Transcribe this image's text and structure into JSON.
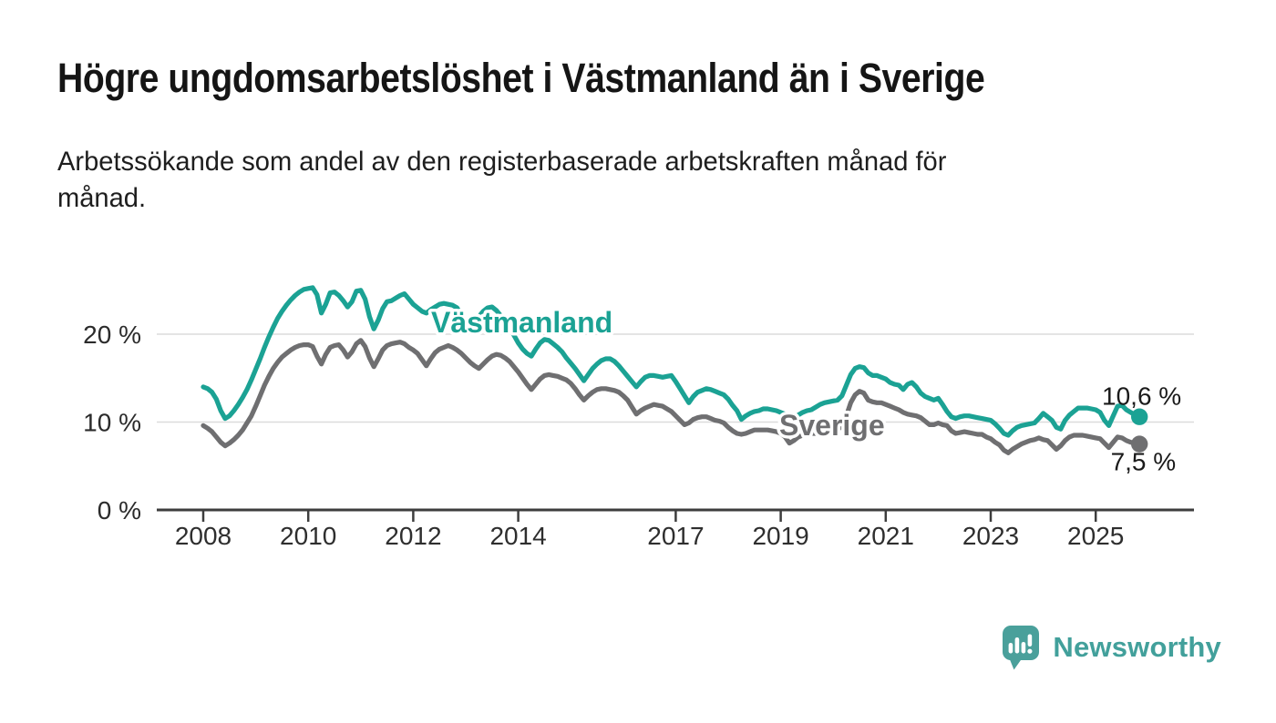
{
  "header": {
    "title": "Högre ungdomsarbetslöshet i Västmanland än i Sverige",
    "subtitle_line1": "Arbetssökande som andel av den registerbaserade arbetskraften månad för",
    "subtitle_line2": "månad."
  },
  "footer": {
    "brand": "Newsworthy",
    "logo_icon": "bar-chart-speech-bubble-icon"
  },
  "colors": {
    "vastmanland_teal": "#1ba294",
    "sverige_gray": "#6f6f71",
    "axis": "#3d3d3d",
    "gridline": "#dcdcdc",
    "text_dark": "#1a1a1a",
    "logo_teal": "#42a09b",
    "background": "#ffffff"
  },
  "chart_data": {
    "type": "line",
    "title": "Högre ungdomsarbetslöshet i Västmanland än i Sverige",
    "subtitle": "Arbetssökande som andel av den registerbaserade arbetskraften månad för månad.",
    "xlabel": "",
    "ylabel": "",
    "frequency": "monthly",
    "x_start_month": "2008-01",
    "x_end_month": "2025-11",
    "x_ticks": [
      2008,
      2010,
      2012,
      2014,
      2017,
      2019,
      2021,
      2023,
      2025
    ],
    "y_ticks": [
      {
        "value": 0,
        "label": "0 %"
      },
      {
        "value": 10,
        "label": "10 %"
      },
      {
        "value": 20,
        "label": "20 %"
      }
    ],
    "ylim": [
      0,
      26.5
    ],
    "grid": "horizontal",
    "legend_position": "inline-labels",
    "series": [
      {
        "name": "Sverige",
        "label": "Sverige",
        "color": "#6f6f71",
        "end_label": "7,5 %",
        "end_value": 7.5,
        "values": [
          9.6,
          9.3,
          8.9,
          8.3,
          7.7,
          7.3,
          7.6,
          8.0,
          8.5,
          9.1,
          9.9,
          10.7,
          11.8,
          13.0,
          14.2,
          15.2,
          16.1,
          16.8,
          17.4,
          17.8,
          18.2,
          18.5,
          18.7,
          18.8,
          18.8,
          18.6,
          17.5,
          16.6,
          17.7,
          18.5,
          18.7,
          18.8,
          18.2,
          17.4,
          18.0,
          18.9,
          19.3,
          18.6,
          17.3,
          16.3,
          17.2,
          18.2,
          18.7,
          18.9,
          19.0,
          19.1,
          18.9,
          18.5,
          18.2,
          17.8,
          17.1,
          16.4,
          17.2,
          17.9,
          18.3,
          18.5,
          18.7,
          18.5,
          18.2,
          17.8,
          17.3,
          16.8,
          16.4,
          16.1,
          16.6,
          17.1,
          17.5,
          17.7,
          17.6,
          17.3,
          16.9,
          16.3,
          15.7,
          15.0,
          14.3,
          13.7,
          14.3,
          14.9,
          15.3,
          15.4,
          15.3,
          15.2,
          15.0,
          14.8,
          14.4,
          13.8,
          13.1,
          12.5,
          13.0,
          13.4,
          13.7,
          13.8,
          13.8,
          13.7,
          13.6,
          13.4,
          13.0,
          12.5,
          11.7,
          10.9,
          11.3,
          11.6,
          11.8,
          12.0,
          11.9,
          11.8,
          11.5,
          11.2,
          10.7,
          10.2,
          9.7,
          9.9,
          10.3,
          10.5,
          10.6,
          10.6,
          10.4,
          10.2,
          10.1,
          9.9,
          9.4,
          9.0,
          8.7,
          8.6,
          8.7,
          8.9,
          9.1,
          9.1,
          9.1,
          9.1,
          9.0,
          8.9,
          8.7,
          8.3,
          7.6,
          7.9,
          8.3,
          8.5,
          8.7,
          8.7,
          8.7,
          8.8,
          8.8,
          8.9,
          9.0,
          9.1,
          9.6,
          10.7,
          12.2,
          13.1,
          13.5,
          13.3,
          12.5,
          12.3,
          12.2,
          12.2,
          12.0,
          11.8,
          11.6,
          11.4,
          11.1,
          10.9,
          10.8,
          10.7,
          10.5,
          10.1,
          9.7,
          9.7,
          9.9,
          9.7,
          9.6,
          9.0,
          8.7,
          8.8,
          8.9,
          8.8,
          8.7,
          8.6,
          8.6,
          8.3,
          8.1,
          7.7,
          7.4,
          6.8,
          6.5,
          6.9,
          7.2,
          7.5,
          7.7,
          7.9,
          8.0,
          8.2,
          8.0,
          7.9,
          7.4,
          6.9,
          7.3,
          7.9,
          8.3,
          8.5,
          8.5,
          8.5,
          8.4,
          8.3,
          8.2,
          8.1,
          7.6,
          7.1,
          7.7,
          8.3,
          8.2,
          7.9,
          7.7,
          7.6,
          7.5
        ]
      },
      {
        "name": "Västmanland",
        "label": "Västmanland",
        "color": "#1ba294",
        "end_label": "10,6 %",
        "end_value": 10.6,
        "values": [
          14.0,
          13.8,
          13.4,
          12.6,
          11.3,
          10.4,
          10.7,
          11.3,
          12.0,
          12.8,
          13.7,
          14.8,
          16.0,
          17.2,
          18.5,
          19.7,
          20.8,
          21.8,
          22.6,
          23.3,
          23.9,
          24.4,
          24.8,
          25.1,
          25.2,
          25.3,
          24.5,
          22.4,
          23.4,
          24.7,
          24.8,
          24.4,
          23.8,
          23.1,
          23.7,
          24.9,
          25.0,
          24.0,
          22.0,
          20.6,
          21.6,
          22.9,
          23.7,
          23.8,
          24.1,
          24.4,
          24.6,
          24.0,
          23.4,
          23.0,
          22.6,
          22.4,
          22.8,
          23.1,
          23.4,
          23.5,
          23.4,
          23.3,
          23.0,
          22.2,
          21.4,
          20.8,
          21.4,
          22.0,
          22.6,
          23.0,
          23.1,
          22.7,
          22.1,
          21.5,
          20.8,
          19.9,
          19.0,
          18.3,
          17.8,
          17.5,
          18.3,
          19.0,
          19.4,
          19.3,
          18.9,
          18.5,
          18.0,
          17.3,
          16.7,
          16.1,
          15.4,
          14.7,
          15.4,
          16.1,
          16.6,
          17.0,
          17.2,
          17.2,
          16.9,
          16.4,
          15.8,
          15.2,
          14.6,
          14.0,
          14.6,
          15.1,
          15.3,
          15.3,
          15.2,
          15.1,
          15.2,
          15.3,
          14.6,
          13.8,
          13.0,
          12.2,
          12.9,
          13.4,
          13.6,
          13.8,
          13.7,
          13.5,
          13.3,
          13.1,
          12.6,
          11.9,
          11.3,
          10.3,
          10.7,
          11.0,
          11.2,
          11.3,
          11.5,
          11.5,
          11.4,
          11.3,
          11.1,
          10.9,
          10.7,
          10.5,
          10.8,
          11.1,
          11.3,
          11.4,
          11.7,
          12.0,
          12.2,
          12.3,
          12.4,
          12.5,
          13.0,
          14.2,
          15.4,
          16.1,
          16.3,
          16.2,
          15.6,
          15.3,
          15.3,
          15.1,
          14.9,
          14.5,
          14.3,
          14.2,
          13.7,
          14.3,
          14.5,
          14.0,
          13.3,
          12.9,
          12.7,
          12.5,
          12.7,
          12.0,
          11.2,
          10.6,
          10.4,
          10.6,
          10.7,
          10.7,
          10.6,
          10.5,
          10.4,
          10.3,
          10.2,
          9.8,
          9.3,
          8.7,
          8.5,
          9.0,
          9.4,
          9.6,
          9.7,
          9.8,
          9.9,
          10.4,
          11.0,
          10.6,
          10.2,
          9.4,
          9.2,
          10.2,
          10.8,
          11.2,
          11.6,
          11.6,
          11.6,
          11.5,
          11.4,
          11.1,
          10.2,
          9.6,
          10.7,
          11.8,
          11.9,
          11.4,
          11.1,
          10.8,
          10.6
        ]
      }
    ]
  }
}
